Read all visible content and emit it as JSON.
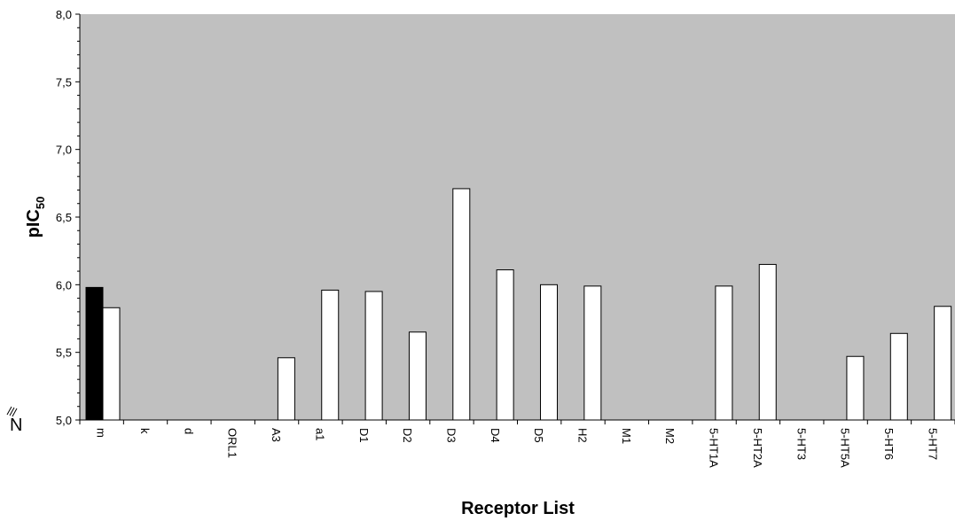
{
  "chart_data": {
    "type": "bar",
    "xlabel": "Receptor List",
    "ylabel": "pIC",
    "ylabel_subscript": "50",
    "ylim": [
      5.0,
      8.0
    ],
    "yticks": [
      "5,0",
      "5,5",
      "6,0",
      "6,5",
      "7,0",
      "7,5",
      "8,0"
    ],
    "grid": false,
    "plot_background": "#c0c0c0",
    "categories": [
      "m",
      "k",
      "d",
      "ORL1",
      "A3",
      "a1",
      "D1",
      "D2",
      "D3",
      "D4",
      "D5",
      "H2",
      "M1",
      "M2",
      "5-HT1A",
      "5-HT2A",
      "5-HT3",
      "5-HT5A",
      "5-HT6",
      "5-HT7"
    ],
    "series": [
      {
        "color": "#000000",
        "values": [
          5.98,
          null,
          null,
          null,
          null,
          null,
          null,
          null,
          null,
          null,
          null,
          null,
          null,
          null,
          null,
          null,
          null,
          null,
          null,
          null
        ]
      },
      {
        "color": "#ffffff",
        "values": [
          5.83,
          null,
          null,
          null,
          5.46,
          5.96,
          5.95,
          5.65,
          6.71,
          6.11,
          6.0,
          5.99,
          null,
          null,
          5.99,
          6.15,
          null,
          5.47,
          5.64,
          5.84
        ]
      }
    ]
  },
  "corner_label": "N"
}
